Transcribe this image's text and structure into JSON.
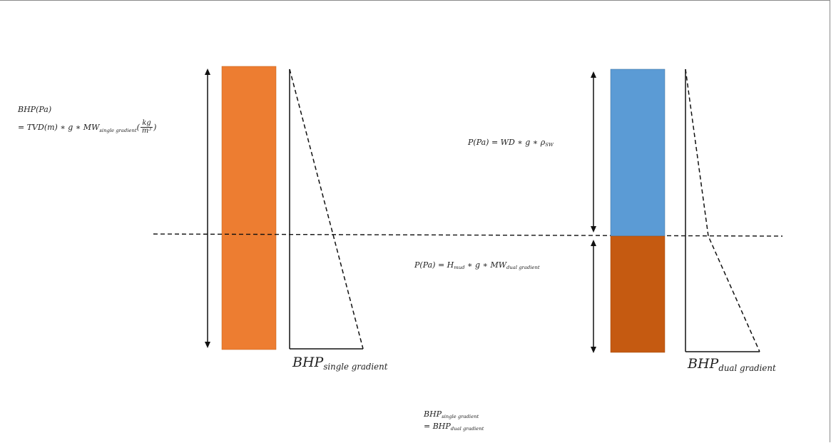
{
  "colors": {
    "single_mud": "#ED7D31",
    "seawater": "#5B9BD5",
    "dual_mud": "#C55A11",
    "line": "#111111"
  },
  "labels": {
    "single_formula_line1": "BHP(Pa)",
    "single_formula_line2_a": "= TVD(m) ∗ g ∗ MW",
    "single_formula_line2_sub": "single gradient",
    "single_formula_frac_open": "(",
    "single_formula_frac_num": "kg",
    "single_formula_frac_den_base": "m",
    "single_formula_frac_den_exp": "3",
    "single_formula_frac_close": ")",
    "sw_formula_a": "P(Pa) = WD ∗ g ∗ ρ",
    "sw_formula_sub": "SW",
    "dual_formula_a": "P(Pa) = H",
    "dual_formula_sub1": "mud",
    "dual_formula_b": " ∗ g ∗ MW",
    "dual_formula_sub2": "dual gradient",
    "bhp_single_base": "BHP",
    "bhp_single_sub": "single gradient",
    "bhp_dual_base": "BHP",
    "bhp_dual_sub": "dual gradient",
    "equality_line1_base": "BHP",
    "equality_line1_sub": "single gradient",
    "equality_line2_a": "= BHP",
    "equality_line2_sub": "dual gradient"
  }
}
